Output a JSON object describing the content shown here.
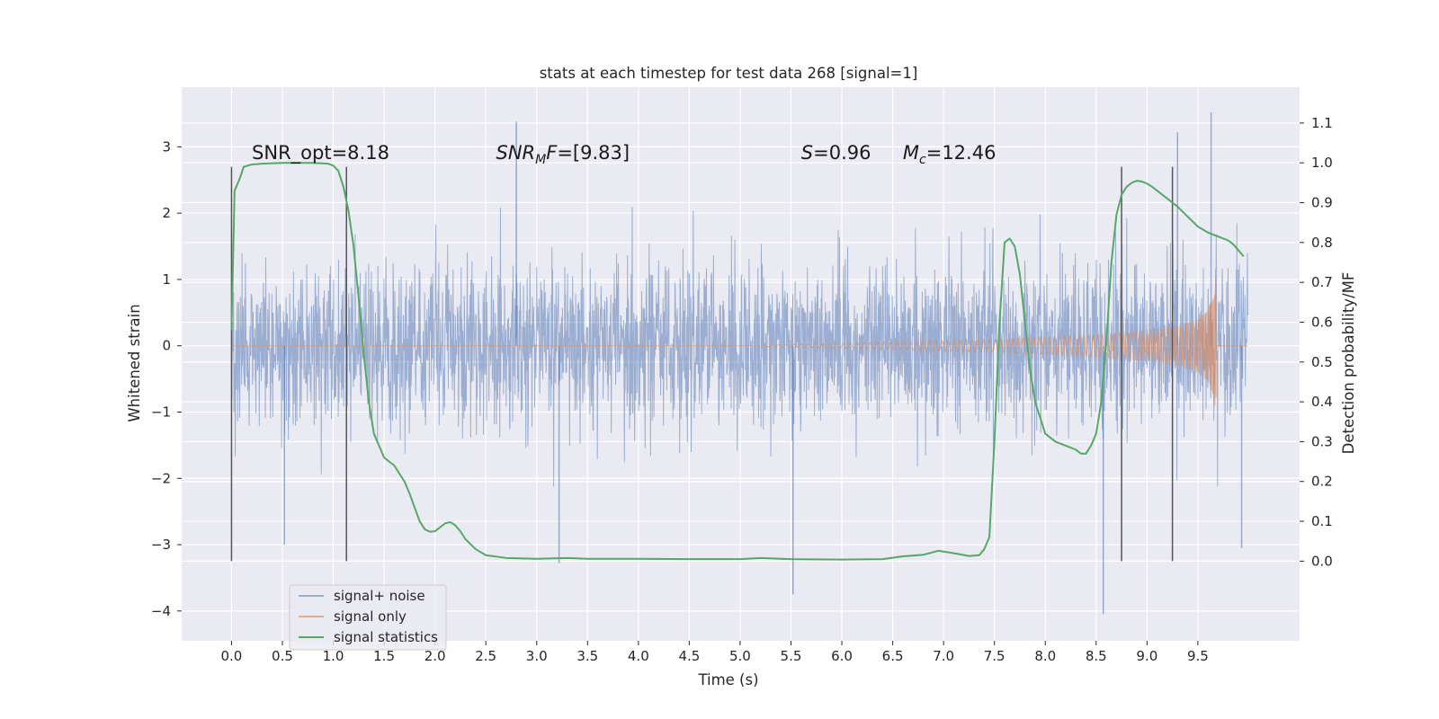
{
  "chart_data": {
    "type": "line",
    "title": "stats at each timestep for test data 268 [signal=1]",
    "xlabel": "Time (s)",
    "ylabel": "Whitened strain",
    "y2label": "Detection probability/MF",
    "xlim": [
      -0.49,
      10.5
    ],
    "ylim": [
      -4.45,
      3.9
    ],
    "y2lim": [
      -0.2,
      1.19
    ],
    "xticks": [
      0.0,
      0.5,
      1.0,
      1.5,
      2.0,
      2.5,
      3.0,
      3.5,
      4.0,
      4.5,
      5.0,
      5.5,
      6.0,
      6.5,
      7.0,
      7.5,
      8.0,
      8.5,
      9.0,
      9.5
    ],
    "xtick_labels": [
      "0.0",
      "0.5",
      "1.0",
      "1.5",
      "2.0",
      "2.5",
      "3.0",
      "3.5",
      "4.0",
      "4.5",
      "5.0",
      "5.5",
      "6.0",
      "6.5",
      "7.0",
      "7.5",
      "8.0",
      "8.5",
      "9.0",
      "9.5"
    ],
    "yticks": [
      -4,
      -3,
      -2,
      -1,
      0,
      1,
      2,
      3
    ],
    "ytick_labels": [
      "−4",
      "−3",
      "−2",
      "−1",
      "0",
      "1",
      "2",
      "3"
    ],
    "y2ticks": [
      0.0,
      0.1,
      0.2,
      0.3,
      0.4,
      0.5,
      0.6,
      0.7,
      0.8,
      0.9,
      1.0,
      1.1
    ],
    "y2tick_labels": [
      "0.0",
      "0.1",
      "0.2",
      "0.3",
      "0.4",
      "0.5",
      "0.6",
      "0.7",
      "0.8",
      "0.9",
      "1.0",
      "1.1"
    ],
    "grid": true,
    "legend_position": "lower-left",
    "colors": {
      "background": "#eaeaf2",
      "grid": "#ffffff",
      "noise": "#4c72b0",
      "signal": "#dd8452",
      "stats": "#55a868",
      "vlines": "#555555"
    },
    "series": [
      {
        "name": "signal+ noise",
        "axis": "left",
        "x_range": [
          0.0,
          9.99
        ],
        "envelope_typical": [
          -1.6,
          1.6
        ],
        "extremes": [
          {
            "x": 2.8,
            "y": 3.38
          },
          {
            "x": 9.63,
            "y": 3.52
          },
          {
            "x": 9.3,
            "y": 3.22
          },
          {
            "x": 8.57,
            "y": -4.05
          },
          {
            "x": 5.52,
            "y": -3.75
          },
          {
            "x": 3.22,
            "y": -3.28
          },
          {
            "x": 0.52,
            "y": -3.0
          },
          {
            "x": 9.93,
            "y": -3.05
          }
        ]
      },
      {
        "name": "signal only",
        "axis": "left",
        "x": [
          0.0,
          5.0,
          5.5,
          6.0,
          6.5,
          7.0,
          7.5,
          8.0,
          8.5,
          9.0,
          9.3,
          9.5,
          9.6,
          9.65,
          9.68,
          9.7,
          9.75,
          9.99
        ],
        "amplitude": [
          0.0,
          0.0,
          0.02,
          0.04,
          0.06,
          0.08,
          0.1,
          0.13,
          0.17,
          0.23,
          0.3,
          0.4,
          0.55,
          0.75,
          1.05,
          0.02,
          0.0,
          0.0
        ]
      },
      {
        "name": "signal statistics",
        "axis": "right",
        "x": [
          0.0,
          0.03,
          0.08,
          0.12,
          0.2,
          0.3,
          0.5,
          0.8,
          0.95,
          1.0,
          1.05,
          1.1,
          1.15,
          1.2,
          1.25,
          1.3,
          1.35,
          1.4,
          1.5,
          1.6,
          1.7,
          1.75,
          1.85,
          1.9,
          1.95,
          2.0,
          2.05,
          2.1,
          2.15,
          2.2,
          2.25,
          2.3,
          2.4,
          2.5,
          2.7,
          3.0,
          3.3,
          3.5,
          4.0,
          4.5,
          5.0,
          5.2,
          5.5,
          6.0,
          6.4,
          6.6,
          6.8,
          6.95,
          7.1,
          7.25,
          7.35,
          7.4,
          7.45,
          7.5,
          7.55,
          7.6,
          7.65,
          7.7,
          7.75,
          7.8,
          7.85,
          7.9,
          7.95,
          8.0,
          8.1,
          8.2,
          8.3,
          8.35,
          8.4,
          8.45,
          8.5,
          8.55,
          8.6,
          8.65,
          8.7,
          8.75,
          8.8,
          8.85,
          8.9,
          8.95,
          9.0,
          9.05,
          9.1,
          9.15,
          9.2,
          9.3,
          9.4,
          9.5,
          9.6,
          9.7,
          9.75,
          9.8,
          9.85,
          9.9,
          9.95
        ],
        "y": [
          0.58,
          0.93,
          0.96,
          0.99,
          0.996,
          0.998,
          1.0,
          1.0,
          0.998,
          0.993,
          0.98,
          0.94,
          0.88,
          0.79,
          0.66,
          0.52,
          0.4,
          0.32,
          0.26,
          0.24,
          0.2,
          0.17,
          0.1,
          0.08,
          0.074,
          0.075,
          0.085,
          0.095,
          0.098,
          0.09,
          0.075,
          0.055,
          0.03,
          0.015,
          0.008,
          0.006,
          0.008,
          0.006,
          0.006,
          0.005,
          0.005,
          0.008,
          0.005,
          0.004,
          0.005,
          0.012,
          0.016,
          0.026,
          0.02,
          0.013,
          0.015,
          0.03,
          0.06,
          0.3,
          0.6,
          0.8,
          0.81,
          0.79,
          0.72,
          0.6,
          0.48,
          0.4,
          0.36,
          0.32,
          0.3,
          0.29,
          0.28,
          0.27,
          0.27,
          0.29,
          0.32,
          0.4,
          0.55,
          0.75,
          0.87,
          0.92,
          0.94,
          0.95,
          0.955,
          0.953,
          0.948,
          0.94,
          0.93,
          0.92,
          0.91,
          0.89,
          0.865,
          0.84,
          0.825,
          0.815,
          0.81,
          0.805,
          0.795,
          0.78,
          0.765
        ]
      }
    ],
    "vlines": {
      "x": [
        0.0,
        1.13,
        8.75,
        9.25
      ],
      "y2_from": 0.0,
      "y2_to": 0.99
    },
    "annotations": [
      {
        "id": "snr-opt",
        "text": "SNR_opt=8.18",
        "x": 0.2,
        "y2": 1.01
      },
      {
        "id": "snr-mf",
        "base": "SNR",
        "sub": "M",
        "rest": "F=[9.83]",
        "x": 2.6,
        "y2": 1.01
      },
      {
        "id": "s-value",
        "base": "S",
        "rest": "=0.96",
        "x": 5.6,
        "y2": 1.01
      },
      {
        "id": "mc-value",
        "base": "M",
        "sub": "c",
        "rest": "=12.46",
        "x": 6.6,
        "y2": 1.01
      }
    ]
  }
}
